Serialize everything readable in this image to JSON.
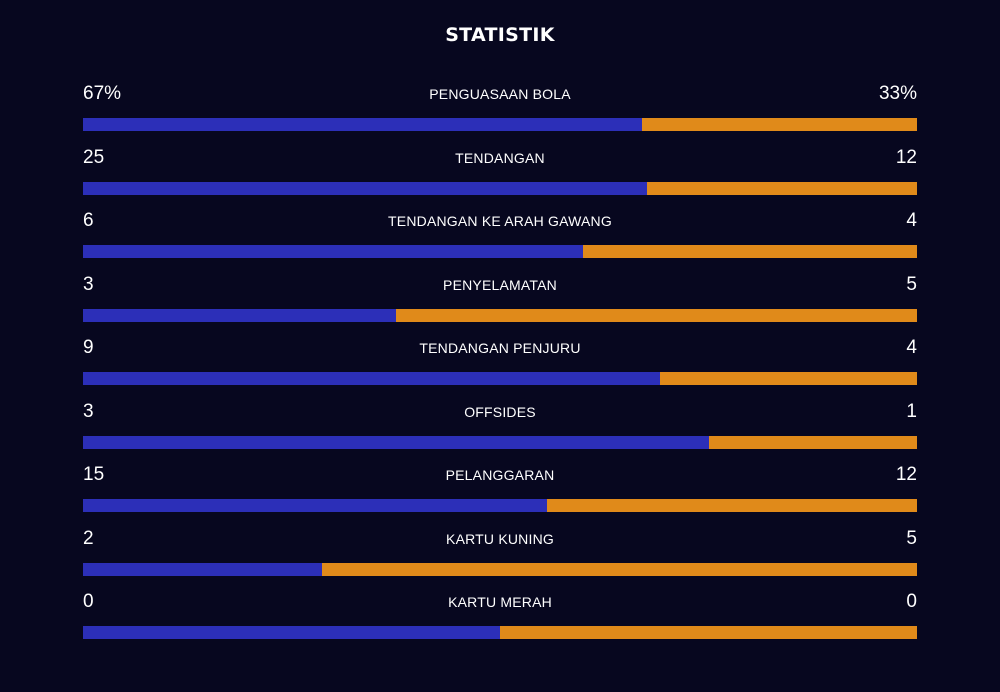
{
  "title": "STATISTIK",
  "colors": {
    "background": "#07071f",
    "home_bar": "#2c2fb8",
    "away_bar": "#e08a1a",
    "text": "#ffffff"
  },
  "stats": [
    {
      "label": "PENGUASAAN BOLA",
      "home": "67%",
      "away": "33%",
      "home_share": 0.67
    },
    {
      "label": "TENDANGAN",
      "home": "25",
      "away": "12",
      "home_share": 0.676
    },
    {
      "label": "TENDANGAN KE ARAH GAWANG",
      "home": "6",
      "away": "4",
      "home_share": 0.6
    },
    {
      "label": "PENYELAMATAN",
      "home": "3",
      "away": "5",
      "home_share": 0.375
    },
    {
      "label": "TENDANGAN PENJURU",
      "home": "9",
      "away": "4",
      "home_share": 0.692
    },
    {
      "label": "OFFSIDES",
      "home": "3",
      "away": "1",
      "home_share": 0.75
    },
    {
      "label": "PELANGGARAN",
      "home": "15",
      "away": "12",
      "home_share": 0.556
    },
    {
      "label": "KARTU KUNING",
      "home": "2",
      "away": "5",
      "home_share": 0.286
    },
    {
      "label": "KARTU MERAH",
      "home": "0",
      "away": "0",
      "home_share": 0.5
    }
  ]
}
